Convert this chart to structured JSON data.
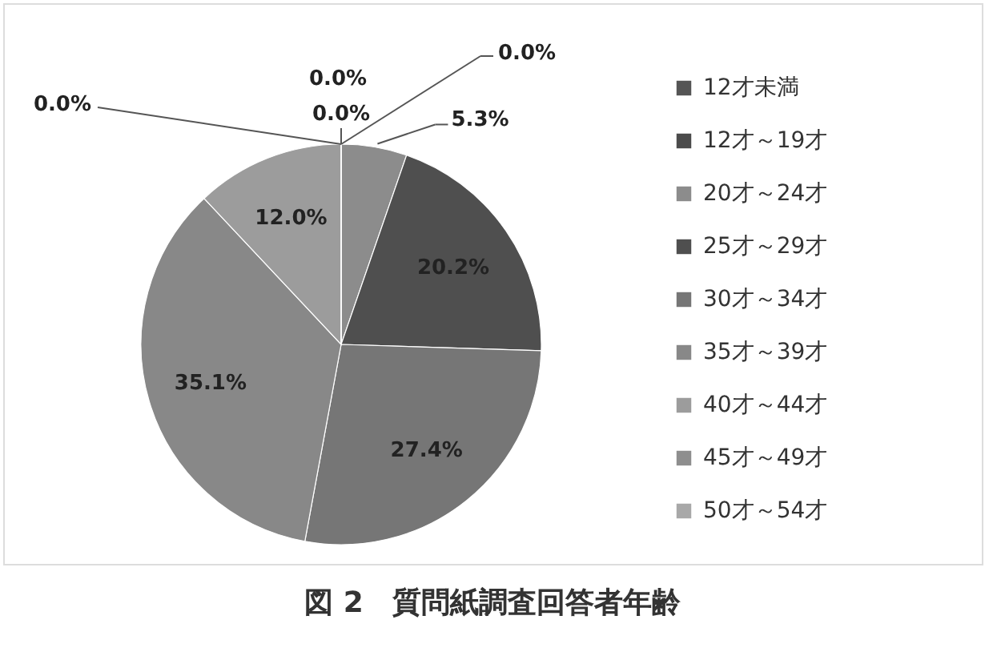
{
  "chart_data": {
    "type": "pie",
    "title": "図 2　質問紙調査回答者年齢",
    "categories": [
      "12才未満",
      "12才～19才",
      "20才～24才",
      "25才～29才",
      "30才～34才",
      "35才～39才",
      "40才～44才",
      "45才～49才",
      "50才～54才"
    ],
    "values": [
      0.0,
      0.0,
      5.3,
      20.2,
      27.4,
      35.1,
      12.0,
      0.0,
      0.0
    ],
    "value_labels": [
      "0.0%",
      "0.0%",
      "5.3%",
      "20.2%",
      "27.4%",
      "35.1%",
      "12.0%",
      "0.0%",
      "0.0%"
    ],
    "colors": [
      "#555555",
      "#4b4b4b",
      "#8c8c8c",
      "#4f4f4f",
      "#767676",
      "#888888",
      "#9c9c9c",
      "#8e8e8e",
      "#a8a8a8"
    ],
    "legend": "right"
  }
}
